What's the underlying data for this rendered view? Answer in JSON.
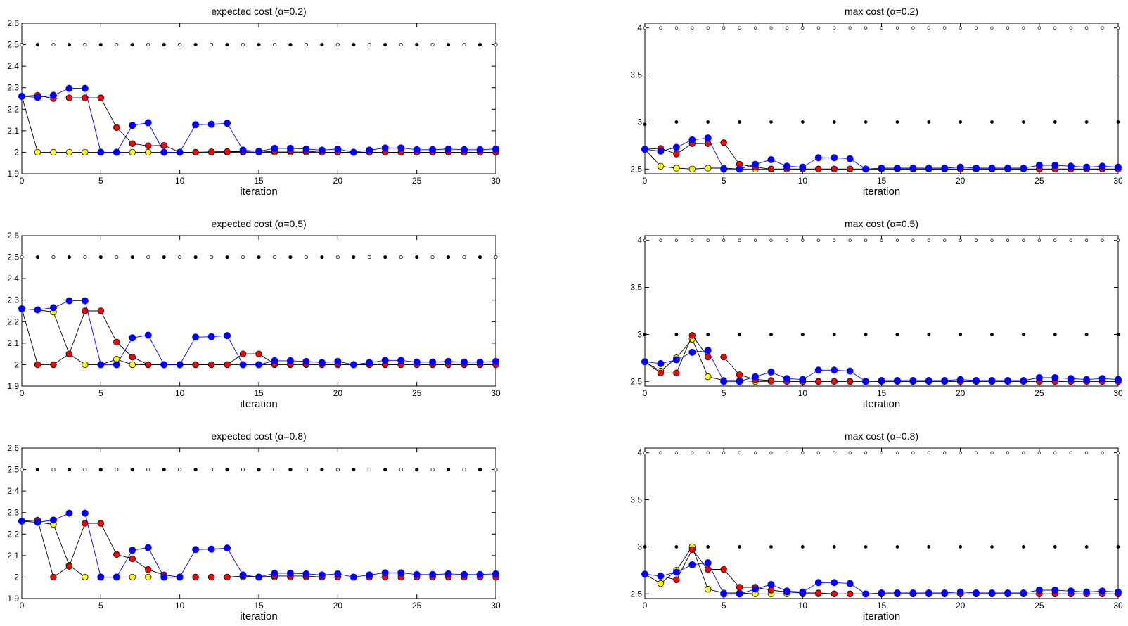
{
  "colors": {
    "yellow": "#ffff00",
    "red": "#ff0000",
    "blue": "#0000ff",
    "black": "#000000",
    "white": "#ffffff",
    "blue_line": "#0000ff",
    "black_line": "#000000"
  },
  "chart_data": [
    {
      "type": "line",
      "title": "expected cost (α=0.2)",
      "xlabel": "iteration",
      "xlim": [
        0,
        30
      ],
      "ylim": [
        1.9,
        2.6
      ],
      "xticks": [
        "0",
        "5",
        "10",
        "15",
        "20",
        "25",
        "30"
      ],
      "yticks": [
        "1.9",
        "2",
        "2.1",
        "2.2",
        "2.3",
        "2.4",
        "2.5",
        "2.6"
      ],
      "series": [
        {
          "name": "reference",
          "color": "black",
          "small_alt": true,
          "values": [
            2.5,
            2.5,
            2.5,
            2.5,
            2.5,
            2.5,
            2.5,
            2.5,
            2.5,
            2.5,
            2.5,
            2.5,
            2.5,
            2.5,
            2.5,
            2.5,
            2.5,
            2.5,
            2.5,
            2.5,
            2.5,
            2.5,
            2.5,
            2.5,
            2.5,
            2.5,
            2.5,
            2.5,
            2.5,
            2.5,
            2.5
          ]
        },
        {
          "name": "yellow",
          "color": "yellow",
          "values": [
            2.26,
            2.0,
            2.0,
            2.0,
            2.0,
            2.0,
            2.0,
            2.0,
            2.0,
            2.0,
            2.0,
            2.0,
            2.0,
            2.0,
            2.0,
            2.0,
            2.0,
            2.0,
            2.0,
            2.0,
            2.0,
            2.0,
            2.0,
            2.0,
            2.0,
            2.0,
            2.0,
            2.0,
            2.0,
            2.0,
            2.0
          ]
        },
        {
          "name": "red",
          "color": "red",
          "values": [
            2.26,
            2.265,
            2.25,
            2.253,
            2.253,
            2.253,
            2.115,
            2.04,
            2.03,
            2.032,
            2.0,
            2.0,
            2.002,
            2.003,
            2.003,
            2.0,
            2.005,
            2.005,
            2.005,
            2.0,
            2.0,
            2.0,
            2.0,
            2.0,
            2.0,
            2.0,
            2.0,
            2.0,
            2.0,
            2.0,
            2.0
          ]
        },
        {
          "name": "blue",
          "color": "blue",
          "values": [
            2.26,
            2.255,
            2.265,
            2.297,
            2.297,
            2.0,
            2.0,
            2.125,
            2.137,
            2.0,
            2.0,
            2.128,
            2.13,
            2.135,
            2.01,
            2.005,
            2.018,
            2.018,
            2.015,
            2.01,
            2.015,
            2.0,
            2.01,
            2.02,
            2.02,
            2.012,
            2.012,
            2.015,
            2.012,
            2.012,
            2.015
          ]
        }
      ]
    },
    {
      "type": "line",
      "title": "max cost (α=0.2)",
      "xlabel": "iteration",
      "xlim": [
        0,
        30
      ],
      "ylim": [
        2.45,
        4.05
      ],
      "xticks": [
        "0",
        "5",
        "10",
        "15",
        "20",
        "25",
        "30"
      ],
      "yticks": [
        "2.5",
        "3",
        "3.5",
        "4"
      ],
      "series": [
        {
          "name": "reference-dots",
          "color": "black",
          "values": [
            2.975,
            3.0,
            3.0,
            3.0,
            3.0,
            3.0,
            3.0,
            3.0,
            3.0,
            3.0,
            3.0,
            3.0,
            3.0,
            3.0,
            3.0,
            3.0
          ]
        },
        {
          "name": "reference-top",
          "color": "white",
          "values": [
            4.0,
            4.0,
            4.0,
            4.0,
            4.0,
            4.0,
            4.0,
            4.0,
            4.0,
            4.0,
            4.0,
            4.0,
            4.0,
            4.0,
            4.0,
            4.0,
            4.0,
            4.0,
            4.0,
            4.0,
            4.0,
            4.0,
            4.0,
            4.0,
            4.0,
            4.0,
            4.0,
            4.0,
            4.0,
            4.0,
            4.0
          ]
        },
        {
          "name": "yellow",
          "color": "yellow",
          "values": [
            2.71,
            2.53,
            2.51,
            2.5,
            2.51,
            2.51,
            2.5,
            2.5,
            2.5,
            2.5,
            2.5,
            2.5,
            2.5,
            2.5,
            2.5,
            2.5,
            2.5,
            2.5,
            2.5,
            2.5,
            2.5,
            2.5,
            2.5,
            2.5,
            2.5,
            2.5,
            2.5,
            2.5,
            2.5,
            2.5,
            2.5
          ]
        },
        {
          "name": "red",
          "color": "red",
          "values": [
            2.71,
            2.72,
            2.66,
            2.77,
            2.77,
            2.78,
            2.55,
            2.52,
            2.5,
            2.5,
            2.5,
            2.5,
            2.5,
            2.5,
            2.5,
            2.5,
            2.5,
            2.5,
            2.5,
            2.5,
            2.5,
            2.5,
            2.5,
            2.5,
            2.5,
            2.5,
            2.5,
            2.5,
            2.5,
            2.5,
            2.5
          ]
        },
        {
          "name": "blue",
          "color": "blue",
          "values": [
            2.71,
            2.69,
            2.73,
            2.81,
            2.83,
            2.5,
            2.5,
            2.55,
            2.6,
            2.53,
            2.52,
            2.62,
            2.62,
            2.61,
            2.5,
            2.51,
            2.51,
            2.51,
            2.51,
            2.51,
            2.52,
            2.51,
            2.51,
            2.51,
            2.51,
            2.54,
            2.54,
            2.53,
            2.52,
            2.53,
            2.52
          ]
        }
      ]
    },
    {
      "type": "line",
      "title": "expected cost (α=0.5)",
      "xlabel": "iteration",
      "xlim": [
        0,
        30
      ],
      "ylim": [
        1.9,
        2.6
      ],
      "xticks": [
        "0",
        "5",
        "10",
        "15",
        "20",
        "25",
        "30"
      ],
      "yticks": [
        "1.9",
        "2",
        "2.1",
        "2.2",
        "2.3",
        "2.4",
        "2.5",
        "2.6"
      ],
      "series": [
        {
          "name": "reference",
          "color": "black",
          "small_alt": true,
          "values": [
            2.5,
            2.5,
            2.5,
            2.5,
            2.5,
            2.5,
            2.5,
            2.5,
            2.5,
            2.5,
            2.5,
            2.5,
            2.5,
            2.5,
            2.5,
            2.5,
            2.5,
            2.5,
            2.5,
            2.5,
            2.5,
            2.5,
            2.5,
            2.5,
            2.5,
            2.5,
            2.5,
            2.5,
            2.5,
            2.5,
            2.5
          ]
        },
        {
          "name": "yellow",
          "color": "yellow",
          "values": [
            2.26,
            2.255,
            2.245,
            2.05,
            2.0,
            2.0,
            2.025,
            2.0,
            2.0,
            2.0,
            2.0,
            2.0,
            2.0,
            2.0,
            2.0,
            2.0,
            2.0,
            2.0,
            2.0,
            2.0,
            2.0,
            2.0,
            2.0,
            2.0,
            2.0,
            2.0,
            2.0,
            2.0,
            2.0,
            2.0,
            2.0
          ]
        },
        {
          "name": "red",
          "color": "red",
          "values": [
            2.26,
            2.0,
            2.0,
            2.05,
            2.25,
            2.25,
            2.105,
            2.035,
            2.0,
            2.0,
            2.0,
            2.0,
            2.0,
            2.0,
            2.05,
            2.05,
            2.003,
            2.003,
            2.003,
            2.0,
            2.0,
            2.0,
            2.0,
            2.0,
            2.0,
            2.0,
            2.0,
            2.0,
            2.0,
            2.0,
            2.0
          ]
        },
        {
          "name": "blue",
          "color": "blue",
          "values": [
            2.26,
            2.255,
            2.265,
            2.297,
            2.297,
            2.0,
            2.0,
            2.125,
            2.137,
            2.0,
            2.0,
            2.128,
            2.13,
            2.135,
            2.0,
            2.0,
            2.018,
            2.018,
            2.015,
            2.01,
            2.015,
            2.0,
            2.01,
            2.02,
            2.02,
            2.012,
            2.012,
            2.015,
            2.012,
            2.012,
            2.015
          ]
        }
      ]
    },
    {
      "type": "line",
      "title": "max cost (α=0.5)",
      "xlabel": "iteration",
      "xlim": [
        0,
        30
      ],
      "ylim": [
        2.45,
        4.05
      ],
      "xticks": [
        "0",
        "5",
        "10",
        "15",
        "20",
        "25",
        "30"
      ],
      "yticks": [
        "2.5",
        "3",
        "3.5",
        "4"
      ],
      "series": [
        {
          "name": "reference-dots",
          "color": "black",
          "values": [
            3.0,
            3.0,
            3.0,
            3.0,
            3.0,
            3.0,
            3.0,
            3.0,
            3.0,
            3.0,
            3.0,
            3.0,
            3.0,
            3.0,
            3.0,
            3.0
          ]
        },
        {
          "name": "reference-top",
          "color": "white",
          "values": [
            4.0,
            4.0,
            4.0,
            4.0,
            4.0,
            4.0,
            4.0,
            4.0,
            4.0,
            4.0,
            4.0,
            4.0,
            4.0,
            4.0,
            4.0,
            4.0,
            4.0,
            4.0,
            4.0,
            4.0,
            4.0,
            4.0,
            4.0,
            4.0,
            4.0,
            4.0,
            4.0,
            4.0,
            4.0,
            4.0,
            4.0
          ]
        },
        {
          "name": "yellow",
          "color": "yellow",
          "values": [
            2.71,
            2.61,
            2.75,
            2.95,
            2.55,
            2.51,
            2.51,
            2.5,
            2.5,
            2.5,
            2.5,
            2.5,
            2.5,
            2.5,
            2.5,
            2.5,
            2.5,
            2.5,
            2.5,
            2.5,
            2.5,
            2.5,
            2.5,
            2.5,
            2.5,
            2.5,
            2.5,
            2.5,
            2.5,
            2.5,
            2.5
          ]
        },
        {
          "name": "red",
          "color": "red",
          "values": [
            2.71,
            2.59,
            2.59,
            2.99,
            2.76,
            2.76,
            2.57,
            2.52,
            2.51,
            2.5,
            2.5,
            2.5,
            2.5,
            2.5,
            2.5,
            2.5,
            2.5,
            2.5,
            2.5,
            2.5,
            2.5,
            2.5,
            2.5,
            2.5,
            2.5,
            2.5,
            2.5,
            2.5,
            2.5,
            2.5,
            2.5
          ]
        },
        {
          "name": "blue",
          "color": "blue",
          "values": [
            2.71,
            2.69,
            2.73,
            2.81,
            2.83,
            2.5,
            2.5,
            2.55,
            2.6,
            2.53,
            2.52,
            2.62,
            2.62,
            2.61,
            2.5,
            2.51,
            2.51,
            2.51,
            2.51,
            2.51,
            2.52,
            2.51,
            2.51,
            2.51,
            2.51,
            2.54,
            2.54,
            2.53,
            2.52,
            2.53,
            2.52
          ]
        }
      ]
    },
    {
      "type": "line",
      "title": "expected cost (α=0.8)",
      "xlabel": "iteration",
      "xlim": [
        0,
        30
      ],
      "ylim": [
        1.9,
        2.6
      ],
      "xticks": [
        "0",
        "5",
        "10",
        "15",
        "20",
        "25",
        "30"
      ],
      "yticks": [
        "1.9",
        "2",
        "2.1",
        "2.2",
        "2.3",
        "2.4",
        "2.5",
        "2.6"
      ],
      "series": [
        {
          "name": "reference",
          "color": "black",
          "small_alt": true,
          "values": [
            2.5,
            2.5,
            2.5,
            2.5,
            2.5,
            2.5,
            2.5,
            2.5,
            2.5,
            2.5,
            2.5,
            2.5,
            2.5,
            2.5,
            2.5,
            2.5,
            2.5,
            2.5,
            2.5,
            2.5,
            2.5,
            2.5,
            2.5,
            2.5,
            2.5,
            2.5,
            2.5,
            2.5,
            2.5,
            2.5,
            2.5
          ]
        },
        {
          "name": "yellow",
          "color": "yellow",
          "values": [
            2.26,
            2.255,
            2.245,
            2.055,
            2.0,
            2.0,
            2.0,
            2.0,
            2.0,
            2.0,
            2.0,
            2.0,
            2.0,
            2.0,
            2.0,
            2.0,
            2.0,
            2.0,
            2.0,
            2.0,
            2.0,
            2.0,
            2.0,
            2.0,
            2.0,
            2.0,
            2.0,
            2.0,
            2.0,
            2.0,
            2.0
          ]
        },
        {
          "name": "red",
          "color": "red",
          "values": [
            2.26,
            2.265,
            2.0,
            2.05,
            2.25,
            2.25,
            2.105,
            2.085,
            2.035,
            2.01,
            2.0,
            2.0,
            2.0,
            2.0,
            2.005,
            2.0,
            2.005,
            2.005,
            2.005,
            2.0,
            2.0,
            2.0,
            2.0,
            2.0,
            2.0,
            2.0,
            2.0,
            2.0,
            2.0,
            2.0,
            2.0
          ]
        },
        {
          "name": "blue",
          "color": "blue",
          "values": [
            2.26,
            2.255,
            2.265,
            2.297,
            2.297,
            2.0,
            2.0,
            2.125,
            2.137,
            2.0,
            2.0,
            2.128,
            2.13,
            2.135,
            2.01,
            2.0,
            2.018,
            2.018,
            2.015,
            2.01,
            2.015,
            2.0,
            2.01,
            2.02,
            2.02,
            2.012,
            2.012,
            2.015,
            2.012,
            2.012,
            2.015
          ]
        }
      ]
    },
    {
      "type": "line",
      "title": "max cost (α=0.8)",
      "xlabel": "iteration",
      "xlim": [
        0,
        30
      ],
      "ylim": [
        2.45,
        4.05
      ],
      "xticks": [
        "0",
        "5",
        "10",
        "15",
        "20",
        "25",
        "30"
      ],
      "yticks": [
        "2.5",
        "3",
        "3.5",
        "4"
      ],
      "series": [
        {
          "name": "reference-dots",
          "color": "black",
          "values": [
            3.0,
            3.0,
            3.0,
            3.0,
            3.0,
            3.0,
            3.0,
            3.0,
            3.0,
            3.0,
            3.0,
            3.0,
            3.0,
            3.0,
            3.0,
            3.0
          ]
        },
        {
          "name": "reference-top",
          "color": "white",
          "values": [
            4.0,
            4.0,
            4.0,
            4.0,
            4.0,
            4.0,
            4.0,
            4.0,
            4.0,
            4.0,
            4.0,
            4.0,
            4.0,
            4.0,
            4.0,
            4.0,
            4.0,
            4.0,
            4.0,
            4.0,
            4.0,
            4.0,
            4.0,
            4.0,
            4.0,
            4.0,
            4.0,
            4.0,
            4.0,
            4.0,
            4.0
          ]
        },
        {
          "name": "yellow",
          "color": "yellow",
          "values": [
            2.71,
            2.61,
            2.75,
            3.0,
            2.55,
            2.51,
            2.51,
            2.5,
            2.5,
            2.5,
            2.5,
            2.5,
            2.5,
            2.5,
            2.5,
            2.5,
            2.5,
            2.5,
            2.5,
            2.5,
            2.5,
            2.5,
            2.5,
            2.5,
            2.5,
            2.5,
            2.5,
            2.5,
            2.5,
            2.5,
            2.5
          ]
        },
        {
          "name": "red",
          "color": "red",
          "values": [
            2.71,
            2.69,
            2.65,
            2.97,
            2.76,
            2.76,
            2.57,
            2.57,
            2.54,
            2.52,
            2.51,
            2.51,
            2.5,
            2.5,
            2.5,
            2.5,
            2.5,
            2.5,
            2.5,
            2.5,
            2.5,
            2.5,
            2.5,
            2.5,
            2.5,
            2.5,
            2.5,
            2.5,
            2.5,
            2.5,
            2.5
          ]
        },
        {
          "name": "blue",
          "color": "blue",
          "values": [
            2.71,
            2.69,
            2.73,
            2.81,
            2.83,
            2.5,
            2.5,
            2.55,
            2.6,
            2.53,
            2.52,
            2.62,
            2.62,
            2.61,
            2.5,
            2.51,
            2.51,
            2.51,
            2.51,
            2.51,
            2.52,
            2.51,
            2.51,
            2.51,
            2.51,
            2.54,
            2.54,
            2.53,
            2.52,
            2.53,
            2.52
          ]
        }
      ]
    }
  ]
}
